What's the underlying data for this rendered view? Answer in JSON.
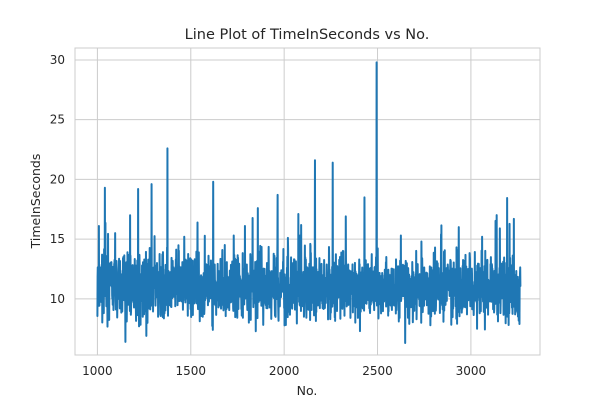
{
  "chart_data": {
    "type": "line",
    "title": "Line Plot of TimeInSeconds vs No.",
    "xlabel": "No.",
    "ylabel": "TimeInSeconds",
    "xlim": [
      880,
      3370
    ],
    "ylim": [
      5.3,
      31.0
    ],
    "xticks": [
      1000,
      1500,
      2000,
      2500,
      3000
    ],
    "yticks": [
      10,
      15,
      20,
      25,
      30
    ],
    "grid": true,
    "line_color": "#1f77b4",
    "grid_color": "#cccccc",
    "series": [
      {
        "name": "",
        "x_start": 1000,
        "x_end": 3265,
        "base": 11.0,
        "spread": 1.6,
        "peaks": [
          {
            "x": 1008,
            "y": 16.1
          },
          {
            "x": 1040,
            "y": 19.3
          },
          {
            "x": 1095,
            "y": 15.5
          },
          {
            "x": 1150,
            "y": 6.4
          },
          {
            "x": 1175,
            "y": 17.0
          },
          {
            "x": 1218,
            "y": 19.2
          },
          {
            "x": 1262,
            "y": 6.9
          },
          {
            "x": 1290,
            "y": 19.6
          },
          {
            "x": 1375,
            "y": 22.6
          },
          {
            "x": 1465,
            "y": 15.2
          },
          {
            "x": 1620,
            "y": 19.8
          },
          {
            "x": 1730,
            "y": 15.3
          },
          {
            "x": 1790,
            "y": 16.1
          },
          {
            "x": 1965,
            "y": 18.7
          },
          {
            "x": 2020,
            "y": 15.1
          },
          {
            "x": 2085,
            "y": 15.3
          },
          {
            "x": 2165,
            "y": 21.6
          },
          {
            "x": 2260,
            "y": 21.4
          },
          {
            "x": 2330,
            "y": 16.9
          },
          {
            "x": 2430,
            "y": 18.5
          },
          {
            "x": 2495,
            "y": 29.8
          },
          {
            "x": 2625,
            "y": 15.3
          },
          {
            "x": 2735,
            "y": 14.8
          },
          {
            "x": 2840,
            "y": 15.4
          },
          {
            "x": 2935,
            "y": 16.0
          },
          {
            "x": 3060,
            "y": 15.2
          },
          {
            "x": 3155,
            "y": 15.9
          },
          {
            "x": 3230,
            "y": 16.7
          },
          {
            "x": 3260,
            "y": 7.9
          }
        ]
      }
    ]
  }
}
